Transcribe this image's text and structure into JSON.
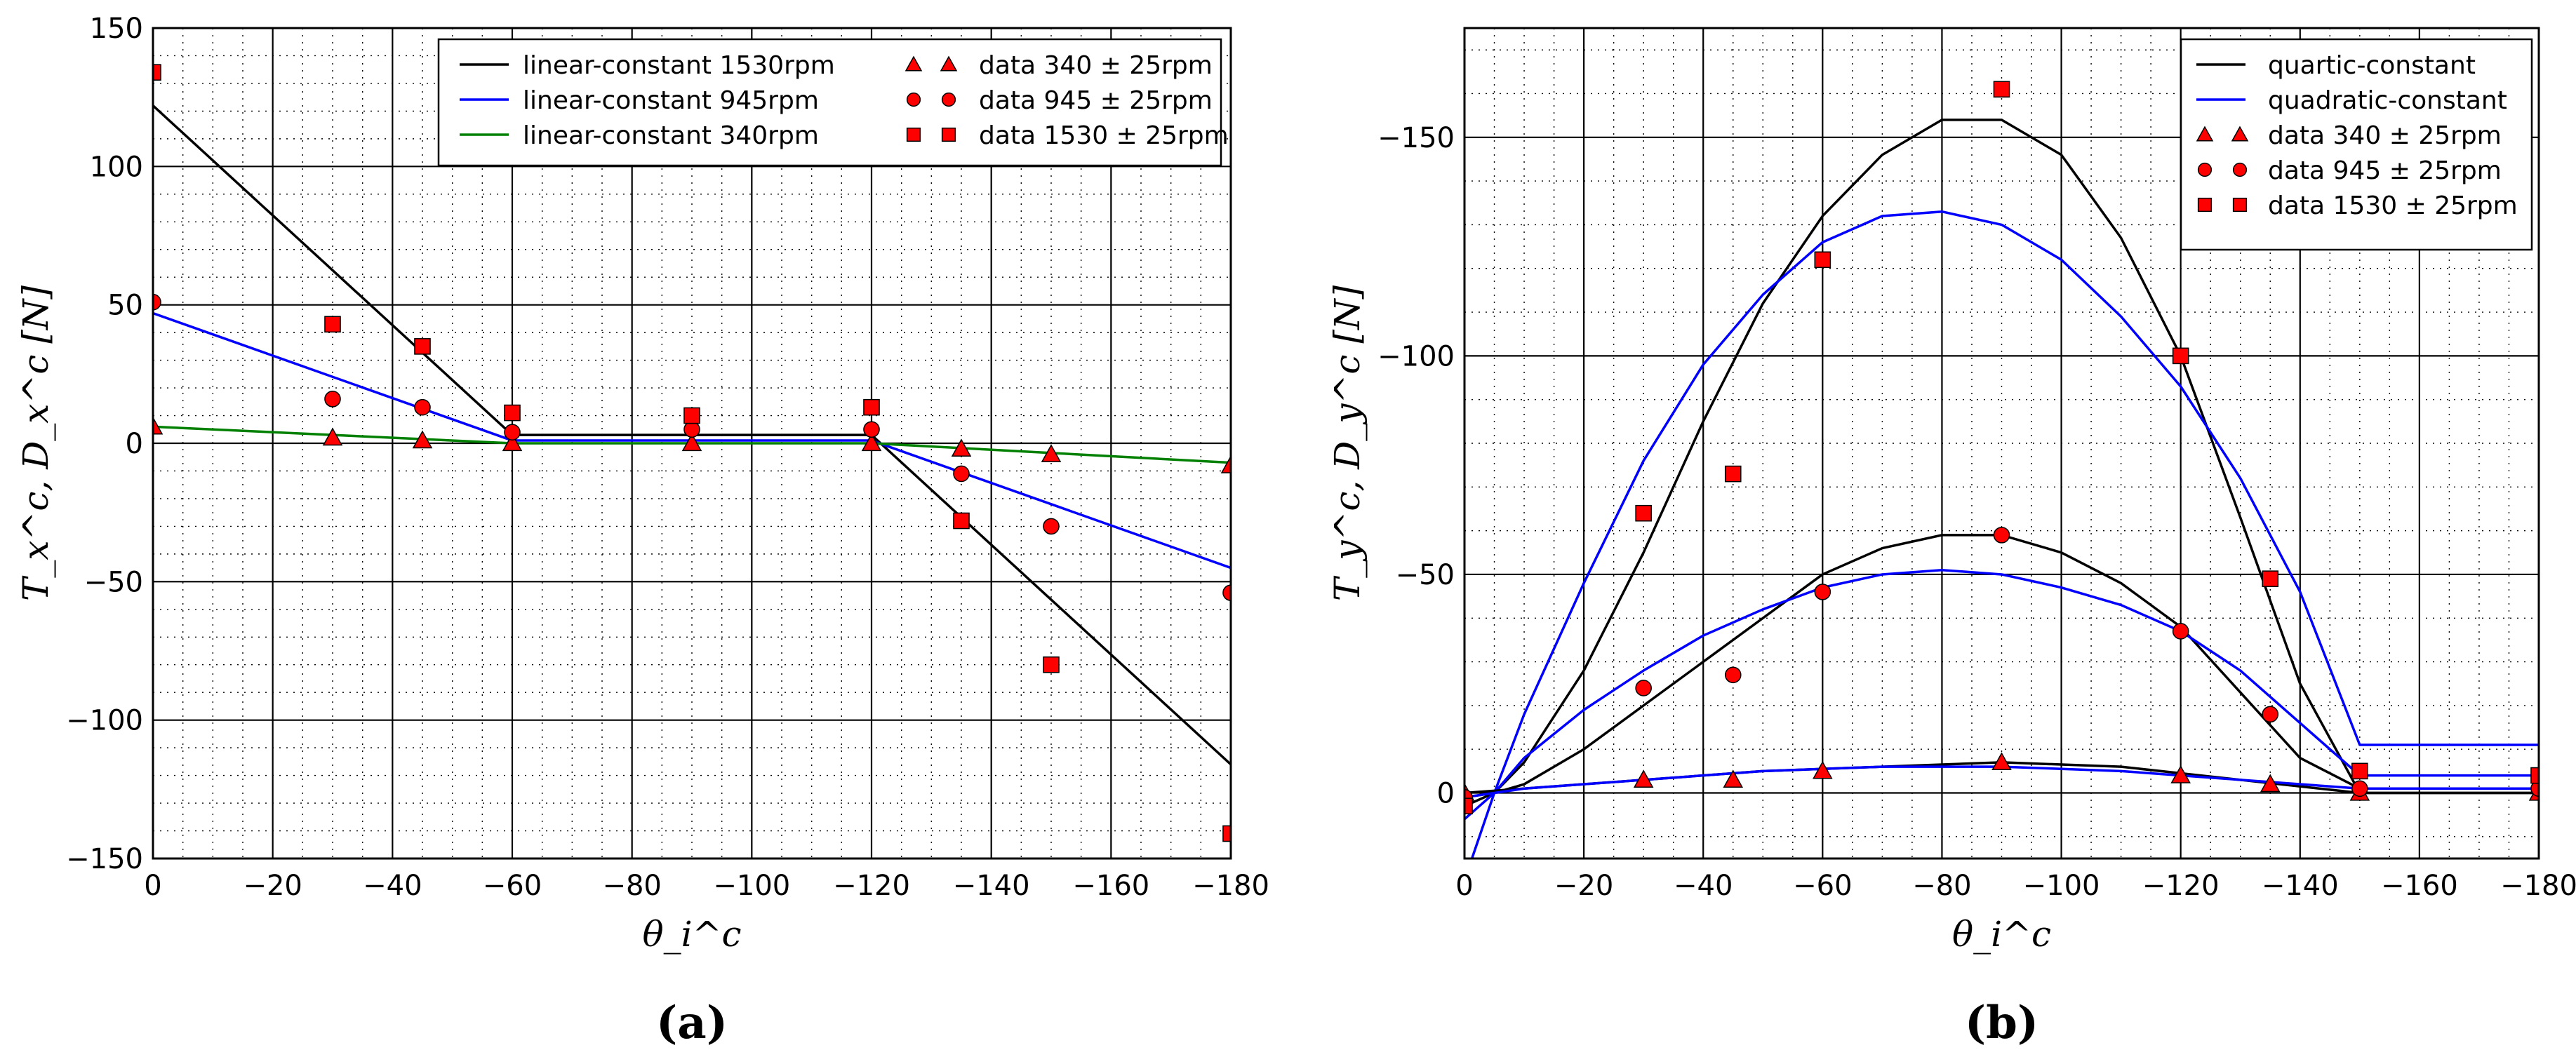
{
  "chart_data": [
    {
      "panel_label": "(a)",
      "type": "line+scatter",
      "xlabel": "θ_i^c",
      "ylabel": "T_x^c, D_x^c [N]",
      "xlim": [
        0,
        -180
      ],
      "ylim": [
        -150,
        150
      ],
      "xticks": [
        0,
        -20,
        -40,
        -60,
        -80,
        -100,
        -120,
        -140,
        -160,
        -180
      ],
      "yticks": [
        -150,
        -100,
        -50,
        0,
        50,
        100,
        150
      ],
      "xtick_labels": [
        "0",
        "−20",
        "−40",
        "−60",
        "−80",
        "−100",
        "−120",
        "−140",
        "−160",
        "−180"
      ],
      "ytick_labels": [
        "−150",
        "−100",
        "−50",
        "0",
        "50",
        "100",
        "150"
      ],
      "grid": "major solid + minor dotted",
      "legend_position": "top-right",
      "legend": [
        {
          "label": "linear-constant 1530rpm",
          "kind": "line",
          "color": "#000000"
        },
        {
          "label": "linear-constant 945rpm",
          "kind": "line",
          "color": "#0000ff"
        },
        {
          "label": "linear-constant 340rpm",
          "kind": "line",
          "color": "#008000"
        },
        {
          "label": "data 340 ± 25rpm",
          "kind": "marker",
          "marker": "triangle",
          "color": "#ff0000"
        },
        {
          "label": "data 945 ± 25rpm",
          "kind": "marker",
          "marker": "circle",
          "color": "#ff0000"
        },
        {
          "label": "data 1530 ± 25rpm",
          "kind": "marker",
          "marker": "square",
          "color": "#ff0000"
        }
      ],
      "lines": [
        {
          "name": "linear-constant 1530rpm",
          "color": "#000000",
          "x": [
            0,
            -60,
            -120,
            -180
          ],
          "y": [
            122,
            3,
            3,
            -116
          ]
        },
        {
          "name": "linear-constant 945rpm",
          "color": "#0000ff",
          "x": [
            0,
            -60,
            -120,
            -180
          ],
          "y": [
            47,
            1,
            1,
            -45
          ]
        },
        {
          "name": "linear-constant 340rpm",
          "color": "#008000",
          "x": [
            0,
            -60,
            -120,
            -180
          ],
          "y": [
            6,
            0,
            0,
            -7
          ]
        }
      ],
      "scatter": [
        {
          "name": "data 340 ± 25rpm",
          "marker": "triangle",
          "x": [
            0,
            -30,
            -45,
            -60,
            -90,
            -120,
            -135,
            -150,
            -180
          ],
          "y": [
            6,
            2,
            1,
            0,
            0,
            0,
            -2,
            -4,
            -8
          ]
        },
        {
          "name": "data 945 ± 25rpm",
          "marker": "circle",
          "x": [
            0,
            -30,
            -45,
            -60,
            -90,
            -120,
            -135,
            -150,
            -180
          ],
          "y": [
            51,
            16,
            13,
            4,
            5,
            5,
            -11,
            -30,
            -54
          ]
        },
        {
          "name": "data 1530 ± 25rpm",
          "marker": "square",
          "x": [
            0,
            -30,
            -45,
            -60,
            -90,
            -120,
            -135,
            -150,
            -180
          ],
          "y": [
            134,
            43,
            35,
            11,
            10,
            13,
            -28,
            -80,
            -141
          ]
        }
      ]
    },
    {
      "panel_label": "(b)",
      "type": "line+scatter",
      "xlabel": "θ_i^c",
      "ylabel": "T_y^c, D_y^c [N]",
      "xlim": [
        0,
        -180
      ],
      "ylim": [
        15,
        -175
      ],
      "xticks": [
        0,
        -20,
        -40,
        -60,
        -80,
        -100,
        -120,
        -140,
        -160,
        -180
      ],
      "yticks": [
        0,
        -50,
        -100,
        -150
      ],
      "xtick_labels": [
        "0",
        "−20",
        "−40",
        "−60",
        "−80",
        "−100",
        "−120",
        "−140",
        "−160",
        "−180"
      ],
      "ytick_labels": [
        "0",
        "−50",
        "−100",
        "−150"
      ],
      "grid": "major solid + minor dotted",
      "legend_position": "top-right",
      "legend": [
        {
          "label": "quartic-constant",
          "kind": "line",
          "color": "#000000"
        },
        {
          "label": "quadratic-constant",
          "kind": "line",
          "color": "#0000ff"
        },
        {
          "label": "data 340 ± 25rpm",
          "kind": "marker",
          "marker": "triangle",
          "color": "#ff0000"
        },
        {
          "label": "data 945 ± 25rpm",
          "kind": "marker",
          "marker": "circle",
          "color": "#ff0000"
        },
        {
          "label": "data 1530 ± 25rpm",
          "kind": "marker",
          "marker": "square",
          "color": "#ff0000"
        }
      ],
      "lines": [
        {
          "name": "quartic-constant 1530rpm",
          "color": "#000000",
          "x": [
            0,
            -5,
            -10,
            -20,
            -30,
            -40,
            -50,
            -60,
            -70,
            -80,
            -90,
            -100,
            -110,
            -120,
            -130,
            -140,
            -150,
            -180
          ],
          "y": [
            3,
            0,
            -7,
            -28,
            -55,
            -85,
            -112,
            -132,
            -146,
            -154,
            -154,
            -146,
            -127,
            -100,
            -63,
            -25,
            0,
            0
          ]
        },
        {
          "name": "quadratic-constant 1530rpm",
          "color": "#0000ff",
          "x": [
            0,
            -5,
            -10,
            -20,
            -30,
            -40,
            -50,
            -60,
            -70,
            -80,
            -90,
            -100,
            -110,
            -120,
            -130,
            -140,
            -150,
            -180
          ],
          "y": [
            20,
            0,
            -18,
            -48,
            -76,
            -98,
            -114,
            -126,
            -132,
            -133,
            -130,
            -122,
            -109,
            -93,
            -72,
            -46,
            -11,
            -11
          ]
        },
        {
          "name": "quartic-constant 945rpm",
          "color": "#000000",
          "x": [
            0,
            -5,
            -10,
            -20,
            -30,
            -40,
            -50,
            -60,
            -70,
            -80,
            -90,
            -100,
            -110,
            -120,
            -130,
            -140,
            -150,
            -180
          ],
          "y": [
            1,
            0,
            -2,
            -10,
            -20,
            -30,
            -40,
            -50,
            -56,
            -59,
            -59,
            -55,
            -48,
            -38,
            -23,
            -8,
            -1,
            -1
          ]
        },
        {
          "name": "quadratic-constant 945rpm",
          "color": "#0000ff",
          "x": [
            0,
            -5,
            -10,
            -20,
            -30,
            -40,
            -50,
            -60,
            -70,
            -80,
            -90,
            -100,
            -110,
            -120,
            -130,
            -140,
            -150,
            -180
          ],
          "y": [
            6,
            0,
            -8,
            -19,
            -28,
            -36,
            -42,
            -47,
            -50,
            -51,
            -50,
            -47,
            -43,
            -37,
            -28,
            -16,
            -4,
            -4
          ]
        },
        {
          "name": "quartic-constant 340rpm",
          "color": "#000000",
          "x": [
            0,
            -10,
            -30,
            -50,
            -70,
            -90,
            -110,
            -130,
            -150,
            -180
          ],
          "y": [
            0,
            -1,
            -3,
            -5,
            -6,
            -7,
            -6,
            -3,
            0,
            0
          ]
        },
        {
          "name": "quadratic-constant 340rpm",
          "color": "#0000ff",
          "x": [
            0,
            -10,
            -30,
            -50,
            -70,
            -90,
            -110,
            -130,
            -150,
            -180
          ],
          "y": [
            1,
            -1,
            -3,
            -5,
            -6,
            -6,
            -5,
            -3,
            -1,
            -1
          ]
        }
      ],
      "scatter": [
        {
          "name": "data 340 ± 25rpm",
          "marker": "triangle",
          "x": [
            0,
            -30,
            -45,
            -60,
            -90,
            -120,
            -135,
            -150,
            -180
          ],
          "y": [
            0,
            -3,
            -3,
            -5,
            -7,
            -4,
            -2,
            0,
            0
          ]
        },
        {
          "name": "data 945 ± 25rpm",
          "marker": "circle",
          "x": [
            0,
            -30,
            -45,
            -60,
            -90,
            -120,
            -135,
            -150,
            -180
          ],
          "y": [
            1,
            -24,
            -27,
            -46,
            -59,
            -37,
            -18,
            -1,
            -1
          ]
        },
        {
          "name": "data 1530 ± 25rpm",
          "marker": "square",
          "x": [
            0,
            -30,
            -45,
            -60,
            -90,
            -120,
            -135,
            -150,
            -180
          ],
          "y": [
            3,
            -64,
            -73,
            -122,
            -161,
            -100,
            -49,
            -5,
            -4
          ]
        }
      ]
    }
  ]
}
